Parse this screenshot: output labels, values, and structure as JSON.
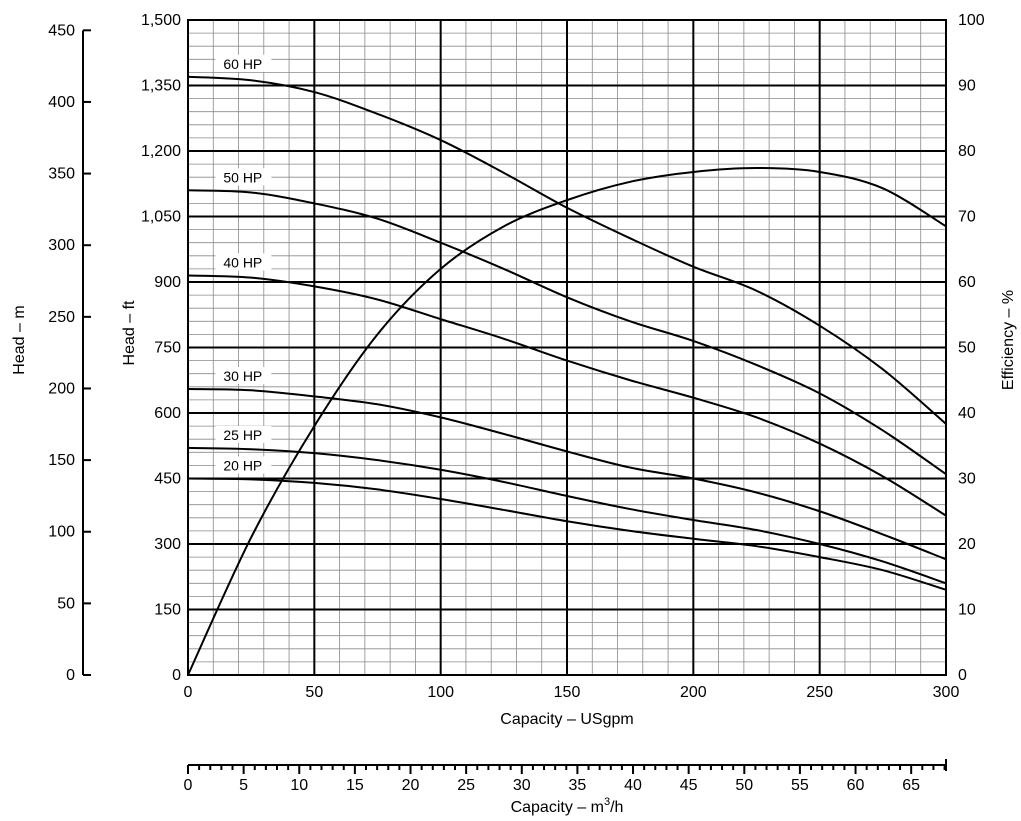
{
  "chart_data": {
    "type": "line",
    "x_axis": {
      "label": "Capacity – USgpm",
      "range": [
        0,
        300
      ],
      "ticks": [
        0,
        50,
        100,
        150,
        200,
        250,
        300
      ],
      "tick_labels": [
        "0",
        "50",
        "100",
        "150",
        "200",
        "250",
        "300"
      ]
    },
    "x_axis_secondary": {
      "label_main": "Capacity – m",
      "label_sup": "3",
      "label_tail": "/h",
      "range": [
        0,
        68.13
      ],
      "ticks": [
        0,
        5,
        10,
        15,
        20,
        25,
        30,
        35,
        40,
        45,
        50,
        55,
        60,
        65
      ],
      "tick_labels": [
        "0",
        "5",
        "10",
        "15",
        "20",
        "25",
        "30",
        "35",
        "40",
        "45",
        "50",
        "55",
        "60",
        "65"
      ]
    },
    "y_axis_ft": {
      "label": "Head – ft",
      "range": [
        0,
        1500
      ],
      "ticks": [
        0,
        150,
        300,
        450,
        600,
        750,
        900,
        1050,
        1200,
        1350,
        1500
      ],
      "tick_labels": [
        "0",
        "150",
        "300",
        "450",
        "600",
        "750",
        "900",
        "1,050",
        "1,200",
        "1,350",
        "1,500"
      ]
    },
    "y_axis_m": {
      "label": "Head – m",
      "range": [
        0,
        457.2
      ],
      "ticks": [
        0,
        50,
        100,
        150,
        200,
        250,
        300,
        350,
        400,
        450
      ],
      "tick_labels": [
        "0",
        "50",
        "100",
        "150",
        "200",
        "250",
        "300",
        "350",
        "400",
        "450"
      ]
    },
    "y_axis_efficiency": {
      "label": "Efficiency – %",
      "range": [
        0,
        100
      ],
      "ticks": [
        0,
        10,
        20,
        30,
        40,
        50,
        60,
        70,
        80,
        90,
        100
      ],
      "tick_labels": [
        "0",
        "10",
        "20",
        "30",
        "40",
        "50",
        "60",
        "70",
        "80",
        "90",
        "100"
      ]
    },
    "grid": true,
    "series": [
      {
        "name": "60 HP",
        "axis": "ft",
        "x": [
          0,
          25,
          50,
          75,
          100,
          125,
          150,
          175,
          200,
          225,
          250,
          275,
          300
        ],
        "y": [
          1370,
          1362,
          1335,
          1285,
          1225,
          1150,
          1070,
          1000,
          935,
          880,
          800,
          700,
          575
        ]
      },
      {
        "name": "50 HP",
        "axis": "ft",
        "x": [
          0,
          25,
          50,
          75,
          100,
          125,
          150,
          175,
          200,
          225,
          250,
          275,
          300
        ],
        "y": [
          1110,
          1105,
          1080,
          1045,
          990,
          930,
          865,
          810,
          765,
          710,
          645,
          560,
          460
        ]
      },
      {
        "name": "40 HP",
        "axis": "ft",
        "x": [
          0,
          25,
          50,
          75,
          100,
          125,
          150,
          175,
          200,
          225,
          250,
          275,
          300
        ],
        "y": [
          915,
          910,
          890,
          860,
          815,
          770,
          720,
          675,
          635,
          590,
          530,
          455,
          365
        ]
      },
      {
        "name": "30 HP",
        "axis": "ft",
        "x": [
          0,
          25,
          50,
          75,
          100,
          125,
          150,
          175,
          200,
          225,
          250,
          275,
          300
        ],
        "y": [
          655,
          652,
          638,
          620,
          590,
          552,
          512,
          475,
          450,
          418,
          375,
          322,
          265
        ]
      },
      {
        "name": "25 HP",
        "axis": "ft",
        "x": [
          0,
          25,
          50,
          75,
          100,
          125,
          150,
          175,
          200,
          225,
          250,
          275,
          300
        ],
        "y": [
          520,
          517,
          508,
          492,
          470,
          442,
          410,
          380,
          355,
          332,
          300,
          260,
          210
        ]
      },
      {
        "name": "20 HP",
        "axis": "ft",
        "x": [
          0,
          25,
          50,
          75,
          100,
          125,
          150,
          175,
          200,
          225,
          250,
          275,
          300
        ],
        "y": [
          450,
          448,
          440,
          425,
          403,
          378,
          352,
          330,
          312,
          295,
          270,
          240,
          195
        ]
      },
      {
        "name": "Efficiency",
        "axis": "efficiency",
        "x": [
          0,
          25,
          50,
          75,
          100,
          125,
          150,
          175,
          200,
          225,
          250,
          275,
          300
        ],
        "y": [
          0,
          21,
          38,
          52,
          62,
          68.5,
          72.5,
          75.3,
          76.8,
          77.4,
          76.8,
          74.3,
          68.5
        ]
      }
    ]
  }
}
